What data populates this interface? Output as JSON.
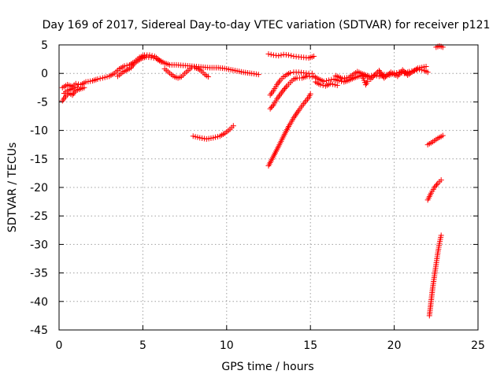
{
  "chart_data": {
    "type": "scatter",
    "title": "Day 169 of 2017, Sidereal Day-to-day VTEC variation (SDTVAR) for receiver p121",
    "xlabel": "GPS time / hours",
    "ylabel": "SDTVAR / TECUs",
    "xlim": [
      0,
      25
    ],
    "ylim": [
      -45,
      5
    ],
    "xticks": [
      0,
      5,
      10,
      15,
      20,
      25
    ],
    "yticks": [
      5,
      0,
      -5,
      -10,
      -15,
      -20,
      -25,
      -30,
      -35,
      -40,
      -45
    ],
    "grid": true,
    "marker": "+",
    "color": "#ff0000",
    "series": [
      {
        "segments": [
          [
            [
              0.2,
              -2.5
            ],
            [
              0.5,
              -2.0
            ],
            [
              0.8,
              -2.3
            ],
            [
              1.0,
              -1.8
            ],
            [
              1.3,
              -2.0
            ],
            [
              1.6,
              -1.5
            ],
            [
              2.0,
              -1.3
            ],
            [
              2.3,
              -1.0
            ],
            [
              2.6,
              -0.8
            ],
            [
              3.0,
              -0.5
            ],
            [
              3.3,
              0.0
            ],
            [
              3.6,
              0.8
            ],
            [
              3.9,
              1.3
            ],
            [
              4.2,
              1.5
            ],
            [
              4.5,
              2.0
            ],
            [
              4.8,
              2.8
            ],
            [
              5.1,
              3.2
            ],
            [
              5.4,
              3.2
            ],
            [
              5.7,
              3.0
            ],
            [
              6.0,
              2.3
            ],
            [
              6.3,
              1.8
            ],
            [
              6.6,
              1.5
            ],
            [
              7.0,
              1.5
            ],
            [
              7.4,
              1.4
            ],
            [
              7.8,
              1.3
            ],
            [
              8.2,
              1.2
            ],
            [
              8.6,
              1.1
            ],
            [
              9.0,
              1.0
            ],
            [
              9.5,
              1.0
            ],
            [
              10.0,
              0.8
            ],
            [
              10.5,
              0.5
            ],
            [
              11.0,
              0.2
            ],
            [
              11.5,
              0.0
            ],
            [
              11.9,
              -0.2
            ]
          ],
          [
            [
              0.2,
              -4.8
            ],
            [
              0.4,
              -4.0
            ],
            [
              0.6,
              -3.5
            ],
            [
              0.8,
              -3.8
            ],
            [
              1.0,
              -3.0
            ],
            [
              1.2,
              -2.8
            ],
            [
              1.5,
              -2.5
            ]
          ],
          [
            [
              0.3,
              -3.5
            ],
            [
              0.5,
              -3.0
            ],
            [
              0.7,
              -2.8
            ],
            [
              0.9,
              -2.5
            ],
            [
              1.1,
              -2.4
            ]
          ],
          [
            [
              3.5,
              -0.5
            ],
            [
              3.8,
              0.2
            ],
            [
              4.0,
              0.5
            ],
            [
              4.3,
              1.0
            ],
            [
              4.5,
              1.8
            ],
            [
              4.7,
              2.2
            ],
            [
              4.9,
              2.6
            ],
            [
              5.2,
              2.9
            ],
            [
              5.5,
              2.8
            ],
            [
              5.8,
              2.6
            ],
            [
              6.1,
              2.0
            ]
          ],
          [
            [
              6.3,
              0.8
            ],
            [
              6.5,
              0.3
            ],
            [
              6.7,
              -0.2
            ],
            [
              6.9,
              -0.6
            ],
            [
              7.1,
              -0.8
            ],
            [
              7.3,
              -0.6
            ],
            [
              7.5,
              0.0
            ],
            [
              7.7,
              0.5
            ],
            [
              7.9,
              1.0
            ],
            [
              8.1,
              1.0
            ],
            [
              8.3,
              0.8
            ],
            [
              8.5,
              0.4
            ],
            [
              8.7,
              -0.2
            ],
            [
              8.9,
              -0.6
            ]
          ],
          [
            [
              8.0,
              -11.0
            ],
            [
              8.4,
              -11.3
            ],
            [
              8.8,
              -11.5
            ],
            [
              9.2,
              -11.3
            ],
            [
              9.6,
              -11.0
            ],
            [
              9.9,
              -10.5
            ],
            [
              10.2,
              -9.8
            ],
            [
              10.4,
              -9.2
            ]
          ],
          [
            [
              12.5,
              3.4
            ],
            [
              12.8,
              3.2
            ],
            [
              13.1,
              3.1
            ],
            [
              13.4,
              3.3
            ],
            [
              13.7,
              3.2
            ],
            [
              14.0,
              3.0
            ],
            [
              14.3,
              2.9
            ],
            [
              14.6,
              2.8
            ],
            [
              14.9,
              2.7
            ],
            [
              15.2,
              3.0
            ]
          ],
          [
            [
              12.6,
              -3.8
            ],
            [
              12.8,
              -3.0
            ],
            [
              13.0,
              -2.0
            ],
            [
              13.2,
              -1.2
            ],
            [
              13.4,
              -0.6
            ],
            [
              13.6,
              -0.2
            ],
            [
              13.8,
              0.1
            ],
            [
              14.0,
              0.2
            ],
            [
              14.3,
              0.2
            ],
            [
              14.6,
              0.1
            ],
            [
              14.9,
              0.0
            ],
            [
              15.1,
              0.0
            ]
          ],
          [
            [
              12.6,
              -6.2
            ],
            [
              12.8,
              -5.5
            ],
            [
              13.0,
              -4.5
            ],
            [
              13.2,
              -3.7
            ],
            [
              13.4,
              -2.9
            ],
            [
              13.6,
              -2.2
            ],
            [
              13.8,
              -1.6
            ],
            [
              14.0,
              -1.0
            ],
            [
              14.2,
              -0.8
            ],
            [
              14.5,
              -0.8
            ],
            [
              14.8,
              -0.5
            ],
            [
              15.1,
              -0.6
            ]
          ],
          [
            [
              12.5,
              -16.2
            ],
            [
              12.8,
              -14.5
            ],
            [
              13.1,
              -12.8
            ],
            [
              13.4,
              -11.0
            ],
            [
              13.7,
              -9.3
            ],
            [
              14.0,
              -7.8
            ],
            [
              14.3,
              -6.5
            ],
            [
              14.6,
              -5.3
            ],
            [
              14.9,
              -4.2
            ],
            [
              15.0,
              -3.6
            ]
          ],
          [
            [
              15.2,
              -0.5
            ],
            [
              15.5,
              -1.0
            ],
            [
              15.8,
              -1.4
            ],
            [
              16.1,
              -1.2
            ],
            [
              16.4,
              -1.0
            ],
            [
              16.7,
              -1.3
            ],
            [
              17.0,
              -1.5
            ],
            [
              17.3,
              -1.2
            ],
            [
              17.6,
              -0.8
            ],
            [
              17.9,
              -0.5
            ],
            [
              18.2,
              -0.2
            ],
            [
              18.5,
              -0.5
            ],
            [
              18.8,
              -0.3
            ],
            [
              19.1,
              -0.5
            ],
            [
              19.4,
              -0.2
            ],
            [
              19.7,
              -0.3
            ],
            [
              20.0,
              0.0
            ],
            [
              20.3,
              0.2
            ],
            [
              20.6,
              0.0
            ],
            [
              20.9,
              0.3
            ],
            [
              21.2,
              0.5
            ],
            [
              21.5,
              0.7
            ],
            [
              21.8,
              0.5
            ],
            [
              22.0,
              0.2
            ]
          ],
          [
            [
              15.3,
              -1.5
            ],
            [
              15.6,
              -2.0
            ],
            [
              15.9,
              -2.2
            ],
            [
              16.2,
              -1.8
            ],
            [
              16.6,
              -2.1
            ]
          ],
          [
            [
              16.5,
              -0.4
            ],
            [
              16.9,
              -0.9
            ],
            [
              17.3,
              -0.7
            ],
            [
              17.8,
              0.3
            ],
            [
              18.2,
              -0.2
            ],
            [
              18.6,
              -1.0
            ],
            [
              19.1,
              0.5
            ],
            [
              19.4,
              -0.8
            ],
            [
              19.8,
              0.2
            ],
            [
              20.2,
              -0.5
            ],
            [
              20.5,
              0.6
            ],
            [
              20.8,
              -0.3
            ],
            [
              21.4,
              0.9
            ],
            [
              21.9,
              1.2
            ]
          ],
          [
            [
              22.0,
              -12.5
            ],
            [
              22.3,
              -12.0
            ],
            [
              22.6,
              -11.4
            ],
            [
              22.9,
              -10.9
            ]
          ],
          [
            [
              22.0,
              -22.2
            ],
            [
              22.2,
              -21.0
            ],
            [
              22.4,
              -20.0
            ],
            [
              22.6,
              -19.3
            ],
            [
              22.8,
              -18.7
            ]
          ],
          [
            [
              22.1,
              -42.5
            ],
            [
              22.2,
              -40.0
            ],
            [
              22.3,
              -37.5
            ],
            [
              22.4,
              -35.5
            ],
            [
              22.5,
              -33.5
            ],
            [
              22.6,
              -31.5
            ],
            [
              22.7,
              -29.8
            ],
            [
              22.8,
              -28.4
            ]
          ],
          [
            [
              22.5,
              4.6
            ],
            [
              22.7,
              4.8
            ],
            [
              22.9,
              4.6
            ]
          ],
          [
            [
              18.1,
              -0.5
            ],
            [
              18.2,
              -1.2
            ],
            [
              18.3,
              -2.0
            ],
            [
              18.4,
              -1.4
            ]
          ]
        ]
      }
    ]
  }
}
